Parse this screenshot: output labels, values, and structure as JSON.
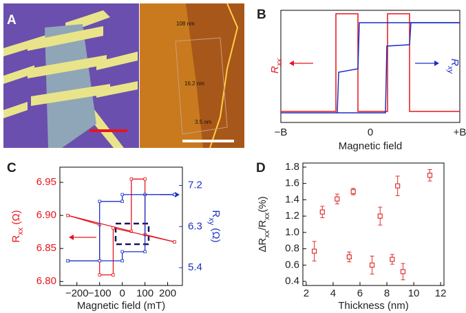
{
  "panels": {
    "A": {
      "label": "A",
      "annotations": [
        "108 nm",
        "16.2 nm",
        "3.5 nm"
      ]
    },
    "B": {
      "label": "B",
      "xtick_labels": [
        "−B",
        "0",
        "+B"
      ],
      "xlabel": "Magnetic field",
      "left_label": [
        {
          "text": "R"
        },
        {
          "text": "xx",
          "sub": true
        }
      ],
      "right_label": [
        {
          "text": "R"
        },
        {
          "text": "xy",
          "sub": true
        }
      ]
    }
  },
  "chart_data": [
    {
      "type": "line",
      "panel_label": "C",
      "xlabel": "Magnetic field (mT)",
      "ylabel": [
        {
          "text": "R"
        },
        {
          "text": "xx",
          "sub": true
        },
        {
          "text": " (Ω)"
        }
      ],
      "y2label": [
        {
          "text": "R"
        },
        {
          "text": "xy",
          "sub": true
        },
        {
          "text": " (Ω)"
        }
      ],
      "xlim": [
        -275,
        265
      ],
      "xticks": [
        {
          "value": -200,
          "label": "−200"
        },
        {
          "value": -100,
          "label": "−100"
        },
        0,
        100,
        200
      ],
      "ylim": [
        6.794,
        6.973
      ],
      "yticks": [
        {
          "value": 6.8,
          "label": "6.80"
        },
        6.85,
        {
          "value": 6.9,
          "label": "6.90"
        },
        6.95
      ],
      "y2lim": [
        5.01,
        7.6
      ],
      "y2ticks": [
        5.4,
        6.3,
        7.2
      ],
      "series": [
        {
          "color": "#e8141c",
          "x": [
            -240,
            40,
            40,
            100,
            100,
            230
          ],
          "values": [
            6.9,
            6.876,
            6.955,
            6.955,
            6.871,
            6.86
          ]
        },
        {
          "color": "#e8141c",
          "x": [
            230,
            -40,
            -40,
            -100,
            -100,
            -240
          ],
          "values": [
            6.86,
            6.881,
            6.81,
            6.81,
            6.886,
            6.9
          ]
        },
        {
          "color": "#1a2fc4",
          "axis": "y2",
          "x": [
            -240,
            0,
            0,
            100,
            100,
            230
          ],
          "values": [
            5.55,
            5.55,
            5.75,
            5.75,
            7.0,
            7.0
          ]
        },
        {
          "color": "#1a2fc4",
          "axis": "y2",
          "x": [
            230,
            0,
            0,
            -100,
            -100,
            -240
          ],
          "values": [
            7.0,
            7.0,
            6.85,
            6.85,
            5.55,
            5.55
          ]
        }
      ]
    },
    {
      "type": "scatter",
      "panel_label": "D",
      "xlabel": "Thickness (nm)",
      "ylabel": [
        {
          "text": "ΔR"
        },
        {
          "text": "xx",
          "sub": true
        },
        {
          "text": "/R"
        },
        {
          "text": "xx",
          "sub": true
        },
        {
          "text": "(%)"
        }
      ],
      "xlim": [
        1.75,
        12.25
      ],
      "xticks": [
        2,
        4,
        6,
        8,
        10,
        12
      ],
      "ylim": [
        0.35,
        1.85
      ],
      "yticks": [
        0.4,
        0.6,
        0.8,
        {
          "value": 1,
          "label": "1.0"
        },
        1.2,
        1.4,
        1.6,
        1.8
      ],
      "color": "#e03030",
      "x": [
        2.6,
        3.2,
        4.3,
        5.2,
        5.5,
        6.9,
        7.5,
        8.4,
        8.8,
        9.2,
        11.2
      ],
      "values": [
        0.77,
        1.25,
        1.41,
        0.7,
        1.5,
        0.6,
        1.2,
        0.67,
        1.57,
        0.52,
        1.7
      ],
      "errors": [
        0.12,
        0.07,
        0.06,
        0.06,
        0.04,
        0.11,
        0.11,
        0.06,
        0.12,
        0.1,
        0.07
      ]
    }
  ]
}
